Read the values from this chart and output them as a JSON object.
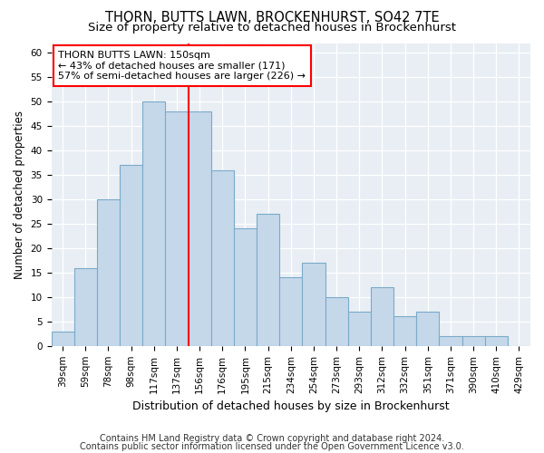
{
  "title": "THORN, BUTTS LAWN, BROCKENHURST, SO42 7TE",
  "subtitle": "Size of property relative to detached houses in Brockenhurst",
  "xlabel": "Distribution of detached houses by size in Brockenhurst",
  "ylabel": "Number of detached properties",
  "categories": [
    "39sqm",
    "59sqm",
    "78sqm",
    "98sqm",
    "117sqm",
    "137sqm",
    "156sqm",
    "176sqm",
    "195sqm",
    "215sqm",
    "234sqm",
    "254sqm",
    "273sqm",
    "293sqm",
    "312sqm",
    "332sqm",
    "351sqm",
    "371sqm",
    "390sqm",
    "410sqm",
    "429sqm"
  ],
  "values": [
    3,
    16,
    30,
    37,
    50,
    48,
    48,
    36,
    24,
    27,
    14,
    17,
    10,
    7,
    12,
    6,
    7,
    2,
    2,
    2,
    0
  ],
  "bar_color": "#c5d8ea",
  "bar_edge_color": "#7aaac8",
  "vline_x": 5.5,
  "vline_color": "red",
  "annotation_line1": "THORN BUTTS LAWN: 150sqm",
  "annotation_line2": "← 43% of detached houses are smaller (171)",
  "annotation_line3": "57% of semi-detached houses are larger (226) →",
  "annotation_box_color": "white",
  "annotation_box_edge": "red",
  "ylim": [
    0,
    62
  ],
  "yticks": [
    0,
    5,
    10,
    15,
    20,
    25,
    30,
    35,
    40,
    45,
    50,
    55,
    60
  ],
  "footer1": "Contains HM Land Registry data © Crown copyright and database right 2024.",
  "footer2": "Contains public sector information licensed under the Open Government Licence v3.0.",
  "background_color": "#ffffff",
  "plot_bg_color": "#e8eef4",
  "title_fontsize": 10.5,
  "subtitle_fontsize": 9.5,
  "tick_fontsize": 7.5,
  "xlabel_fontsize": 9,
  "ylabel_fontsize": 8.5,
  "annotation_fontsize": 8,
  "footer_fontsize": 7
}
